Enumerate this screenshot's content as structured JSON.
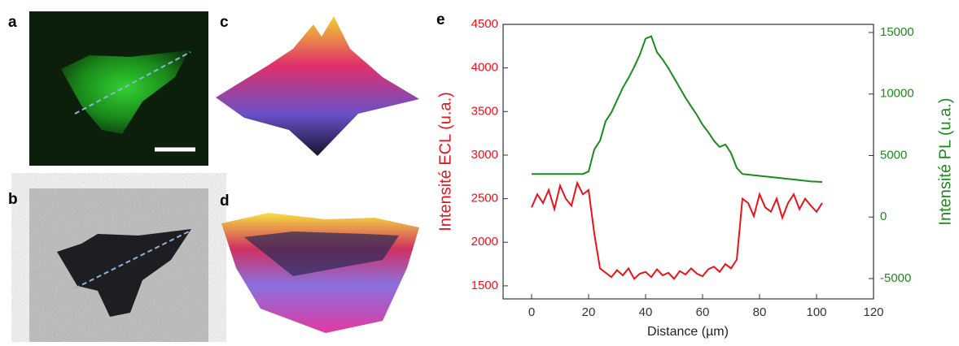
{
  "panel_labels": [
    "a",
    "b",
    "c",
    "d",
    "e"
  ],
  "chart_data": {
    "type": "line",
    "x_label": "Distance (µm)",
    "y_label": "Intensité ECL (u.a.)",
    "y2_label": "Intensité PL (u.a.)",
    "x": [
      0,
      2,
      4,
      6,
      8,
      10,
      12,
      14,
      16,
      18,
      20,
      22,
      24,
      26,
      28,
      30,
      32,
      34,
      36,
      38,
      40,
      42,
      44,
      46,
      48,
      50,
      52,
      54,
      56,
      58,
      60,
      62,
      64,
      66,
      68,
      70,
      72,
      74,
      76,
      78,
      80,
      82,
      84,
      86,
      88,
      90,
      92,
      94,
      96,
      98,
      100,
      102
    ],
    "series": [
      {
        "name": "ECL",
        "color": "#e8131b",
        "axis": "y",
        "values": [
          2400,
          2550,
          2450,
          2600,
          2380,
          2650,
          2500,
          2420,
          2680,
          2550,
          2600,
          2100,
          1700,
          1650,
          1600,
          1680,
          1620,
          1700,
          1580,
          1640,
          1660,
          1600,
          1690,
          1620,
          1650,
          1580,
          1670,
          1630,
          1700,
          1640,
          1610,
          1690,
          1720,
          1660,
          1750,
          1700,
          1800,
          2500,
          2450,
          2300,
          2550,
          2400,
          2350,
          2500,
          2280,
          2450,
          2550,
          2380,
          2500,
          2420,
          2350,
          2450
        ]
      },
      {
        "name": "PL",
        "color": "#1d8a1d",
        "axis": "y2",
        "values": [
          3500,
          3500,
          3500,
          3500,
          3500,
          3500,
          3500,
          3500,
          3500,
          3500,
          3700,
          5500,
          6200,
          7800,
          8500,
          9500,
          10500,
          11300,
          12200,
          13200,
          14500,
          14700,
          13400,
          12800,
          12100,
          11300,
          10500,
          9700,
          9000,
          8300,
          7500,
          6900,
          6200,
          5700,
          5900,
          5200,
          4000,
          3500,
          3450,
          3400,
          3350,
          3300,
          3250,
          3200,
          3150,
          3100,
          3050,
          3000,
          2950,
          2900,
          2880,
          2850
        ]
      }
    ],
    "xlim": [
      -10,
      120
    ],
    "xticks": [
      0,
      20,
      40,
      60,
      80,
      100,
      120
    ],
    "ylim": [
      1350,
      4500
    ],
    "yticks": [
      1500,
      2000,
      2500,
      3000,
      3500,
      4000,
      4500
    ],
    "y2lim": [
      -6650,
      15660
    ],
    "y2ticks": [
      -5000,
      0,
      5000,
      10000,
      15000
    ]
  }
}
